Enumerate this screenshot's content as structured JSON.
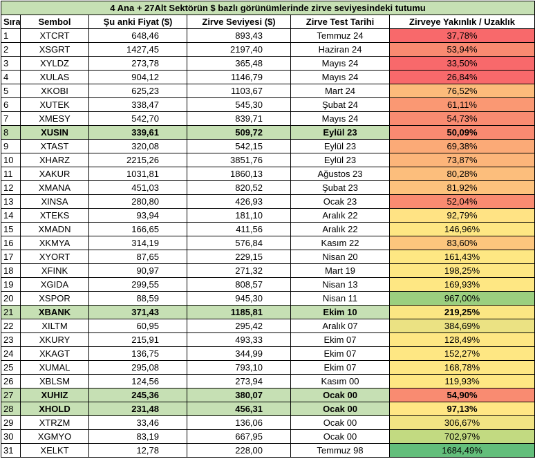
{
  "title": "4 Ana + 27Alt Sektörün $ bazlı görünümlerinde zirve seviyesindeki tutumu",
  "headers": {
    "sira": "Sıra",
    "sembol": "Sembol",
    "fiyat": "Şu anki Fiyat ($)",
    "zirve": "Zirve Seviyesi ($)",
    "tarih": "Zirve Test Tarihi",
    "oran": "Zirveye Yakınlık /  Uzaklık"
  },
  "rows": [
    {
      "sira": "1",
      "sembol": "XTCRT",
      "fiyat": "648,46",
      "zirve": "893,43",
      "tarih": "Temmuz 24",
      "oran": "37,78%",
      "color": "#f8696b",
      "highlight": false
    },
    {
      "sira": "2",
      "sembol": "XSGRT",
      "fiyat": "1427,45",
      "zirve": "2197,40",
      "tarih": "Haziran 24",
      "oran": "53,94%",
      "color": "#f98a71",
      "highlight": false
    },
    {
      "sira": "3",
      "sembol": "XYLDZ",
      "fiyat": "273,78",
      "zirve": "365,48",
      "tarih": "Mayıs 24",
      "oran": "33,50%",
      "color": "#f8696b",
      "highlight": false
    },
    {
      "sira": "4",
      "sembol": "XULAS",
      "fiyat": "904,12",
      "zirve": "1146,79",
      "tarih": "Mayıs 24",
      "oran": "26,84%",
      "color": "#f8696b",
      "highlight": false
    },
    {
      "sira": "5",
      "sembol": "XKOBI",
      "fiyat": "625,23",
      "zirve": "1103,67",
      "tarih": "Mart 24",
      "oran": "76,52%",
      "color": "#fcbb7b",
      "highlight": false
    },
    {
      "sira": "6",
      "sembol": "XUTEK",
      "fiyat": "338,47",
      "zirve": "545,30",
      "tarih": "Şubat 24",
      "oran": "61,11%",
      "color": "#fa9873",
      "highlight": false
    },
    {
      "sira": "7",
      "sembol": "XMESY",
      "fiyat": "542,70",
      "zirve": "839,71",
      "tarih": "Mayıs 24",
      "oran": "54,73%",
      "color": "#f98b71",
      "highlight": false
    },
    {
      "sira": "8",
      "sembol": "XUSIN",
      "fiyat": "339,61",
      "zirve": "509,72",
      "tarih": "Eylül 23",
      "oran": "50,09%",
      "color": "#f98a71",
      "highlight": true
    },
    {
      "sira": "9",
      "sembol": "XTAST",
      "fiyat": "320,08",
      "zirve": "542,15",
      "tarih": "Eylül 23",
      "oran": "69,38%",
      "color": "#fbaa77",
      "highlight": false
    },
    {
      "sira": "10",
      "sembol": "XHARZ",
      "fiyat": "2215,26",
      "zirve": "3851,76",
      "tarih": "Eylül 23",
      "oran": "73,87%",
      "color": "#fcb57a",
      "highlight": false
    },
    {
      "sira": "11",
      "sembol": "XAKUR",
      "fiyat": "1031,81",
      "zirve": "1860,13",
      "tarih": "Ağustos 23",
      "oran": "80,28%",
      "color": "#fcbe7c",
      "highlight": false
    },
    {
      "sira": "12",
      "sembol": "XMANA",
      "fiyat": "451,03",
      "zirve": "820,52",
      "tarih": "Şubat 23",
      "oran": "81,92%",
      "color": "#fdc27d",
      "highlight": false
    },
    {
      "sira": "13",
      "sembol": "XINSA",
      "fiyat": "280,80",
      "zirve": "426,93",
      "tarih": "Ocak 23",
      "oran": "52,04%",
      "color": "#f98b71",
      "highlight": false
    },
    {
      "sira": "14",
      "sembol": "XTEKS",
      "fiyat": "93,94",
      "zirve": "181,10",
      "tarih": "Aralık 22",
      "oran": "92,79%",
      "color": "#ffe384",
      "highlight": false
    },
    {
      "sira": "15",
      "sembol": "XMADN",
      "fiyat": "166,65",
      "zirve": "411,56",
      "tarih": "Aralık 22",
      "oran": "146,96%",
      "color": "#fee783",
      "highlight": false
    },
    {
      "sira": "16",
      "sembol": "XKMYA",
      "fiyat": "314,19",
      "zirve": "576,84",
      "tarih": "Kasım 22",
      "oran": "83,60%",
      "color": "#fdc67d",
      "highlight": false
    },
    {
      "sira": "17",
      "sembol": "XYORT",
      "fiyat": "87,65",
      "zirve": "229,15",
      "tarih": "Nisan 20",
      "oran": "161,43%",
      "color": "#fee783",
      "highlight": false
    },
    {
      "sira": "18",
      "sembol": "XFINK",
      "fiyat": "90,97",
      "zirve": "271,32",
      "tarih": "Mart 19",
      "oran": "198,25%",
      "color": "#fee783",
      "highlight": false
    },
    {
      "sira": "19",
      "sembol": "XGIDA",
      "fiyat": "299,55",
      "zirve": "808,57",
      "tarih": "Nisan 13",
      "oran": "169,93%",
      "color": "#fee783",
      "highlight": false
    },
    {
      "sira": "20",
      "sembol": "XSPOR",
      "fiyat": "88,59",
      "zirve": "945,30",
      "tarih": "Nisan 11",
      "oran": "967,00%",
      "color": "#9bcf7f",
      "highlight": false
    },
    {
      "sira": "21",
      "sembol": "XBANK",
      "fiyat": "371,43",
      "zirve": "1185,81",
      "tarih": "Ekim 10",
      "oran": "219,25%",
      "color": "#fbe683",
      "highlight": true
    },
    {
      "sira": "22",
      "sembol": "XILTM",
      "fiyat": "60,95",
      "zirve": "295,42",
      "tarih": "Aralık 07",
      "oran": "384,69%",
      "color": "#ebe283",
      "highlight": false
    },
    {
      "sira": "23",
      "sembol": "XKURY",
      "fiyat": "215,91",
      "zirve": "493,33",
      "tarih": "Ekim 07",
      "oran": "128,49%",
      "color": "#fee783",
      "highlight": false
    },
    {
      "sira": "24",
      "sembol": "XKAGT",
      "fiyat": "136,75",
      "zirve": "344,99",
      "tarih": "Ekim 07",
      "oran": "152,27%",
      "color": "#fee783",
      "highlight": false
    },
    {
      "sira": "25",
      "sembol": "XUMAL",
      "fiyat": "295,08",
      "zirve": "793,10",
      "tarih": "Ekim 07",
      "oran": "168,78%",
      "color": "#fee783",
      "highlight": false
    },
    {
      "sira": "26",
      "sembol": "XBLSM",
      "fiyat": "124,56",
      "zirve": "273,94",
      "tarih": "Kasım 00",
      "oran": "119,93%",
      "color": "#fee783",
      "highlight": false
    },
    {
      "sira": "27",
      "sembol": "XUHIZ",
      "fiyat": "245,36",
      "zirve": "380,07",
      "tarih": "Ocak 00",
      "oran": "54,90%",
      "color": "#f98b71",
      "highlight": true
    },
    {
      "sira": "28",
      "sembol": "XHOLD",
      "fiyat": "231,48",
      "zirve": "456,31",
      "tarih": "Ocak 00",
      "oran": "97,13%",
      "color": "#ffe684",
      "highlight": true
    },
    {
      "sira": "29",
      "sembol": "XTRZM",
      "fiyat": "33,46",
      "zirve": "136,06",
      "tarih": "Ocak 00",
      "oran": "306,67%",
      "color": "#f1e383",
      "highlight": false
    },
    {
      "sira": "30",
      "sembol": "XGMYO",
      "fiyat": "83,19",
      "zirve": "667,95",
      "tarih": "Ocak 00",
      "oran": "702,97%",
      "color": "#c2da81",
      "highlight": false
    },
    {
      "sira": "31",
      "sembol": "XELKT",
      "fiyat": "12,78",
      "zirve": "228,00",
      "tarih": "Temmuz 98",
      "oran": "1684,49%",
      "color": "#63be7b",
      "highlight": false
    }
  ]
}
